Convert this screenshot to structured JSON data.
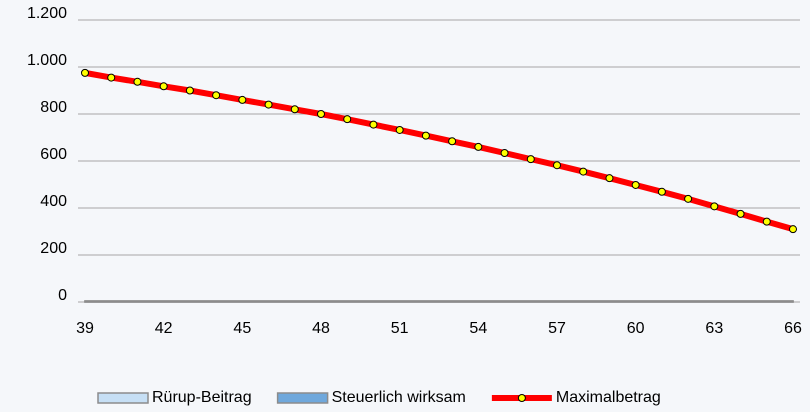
{
  "chart_data": {
    "type": "line",
    "x": [
      39,
      40,
      41,
      42,
      43,
      44,
      45,
      46,
      47,
      48,
      49,
      50,
      51,
      52,
      53,
      54,
      55,
      56,
      57,
      58,
      59,
      60,
      61,
      62,
      63,
      64,
      65,
      66
    ],
    "xlim": [
      39,
      66
    ],
    "xticks": [
      39,
      42,
      45,
      48,
      51,
      54,
      57,
      60,
      63,
      66
    ],
    "ylim": [
      0,
      1200
    ],
    "yticks": [
      0,
      200,
      400,
      600,
      800,
      {
        "value": 1000,
        "label": "1.000"
      },
      {
        "value": 1200,
        "label": "1.200"
      }
    ],
    "grid": true,
    "legend": "bottom",
    "series": [
      {
        "name": "Rürup-Beitrag",
        "kind": "area",
        "color": "#c6dff5",
        "values": [
          5,
          5,
          5,
          5,
          5,
          5,
          5,
          5,
          5,
          5,
          5,
          5,
          5,
          5,
          5,
          5,
          5,
          5,
          5,
          5,
          5,
          5,
          5,
          5,
          5,
          5,
          5,
          5
        ]
      },
      {
        "name": "Steuerlich wirksam",
        "kind": "area",
        "color": "#6fa8dc",
        "values": [
          3,
          3,
          3,
          3,
          3,
          3,
          3,
          3,
          3,
          3,
          3,
          3,
          3,
          3,
          3,
          3,
          3,
          3,
          3,
          3,
          3,
          3,
          3,
          3,
          3,
          3,
          3,
          3
        ]
      },
      {
        "name": "Maximalbetrag",
        "kind": "line",
        "color": "#ff0000",
        "marker_color": "#ffff00",
        "values": [
          975,
          955,
          937,
          918,
          900,
          880,
          860,
          840,
          820,
          800,
          778,
          755,
          732,
          708,
          684,
          660,
          634,
          608,
          582,
          555,
          527,
          498,
          469,
          439,
          407,
          375,
          342,
          310
        ]
      }
    ]
  }
}
